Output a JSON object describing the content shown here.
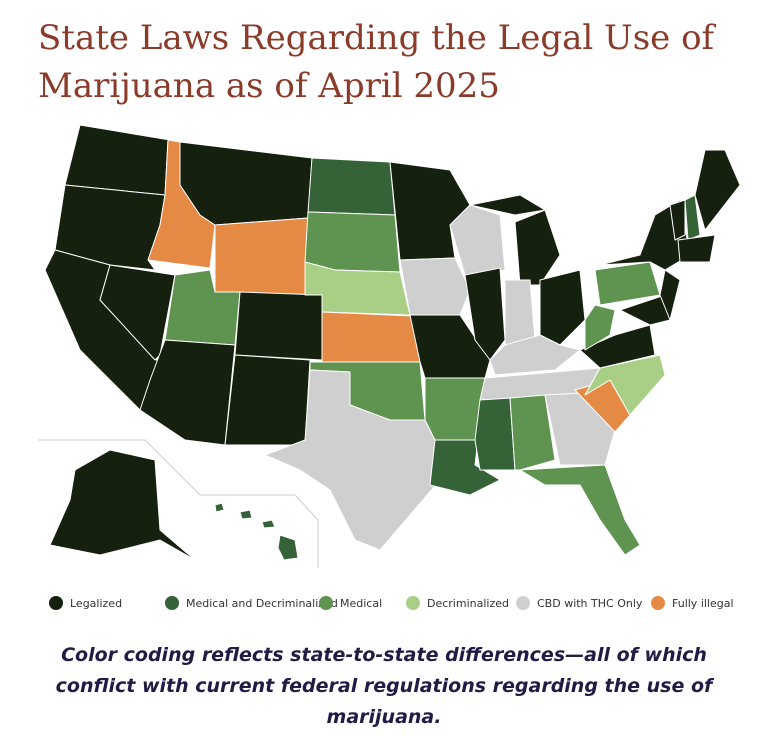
{
  "title": "State Laws Regarding the Legal Use of Marijuana as of April 2025",
  "legend": [
    {
      "label": "Legalized",
      "color": "#16200f"
    },
    {
      "label": "Medical and Decriminalized",
      "color": "#356337"
    },
    {
      "label": "Medical",
      "color": "#5e9450"
    },
    {
      "label": "Decriminalized",
      "color": "#a8cf85"
    },
    {
      "label": "CBD with THC Only",
      "color": "#cfcfcf"
    },
    {
      "label": "Fully illegal",
      "color": "#e58a45"
    }
  ],
  "caption": "Color coding reflects state-to-state differences—all of which conflict with current federal regulations regarding the use of marijuana."
}
